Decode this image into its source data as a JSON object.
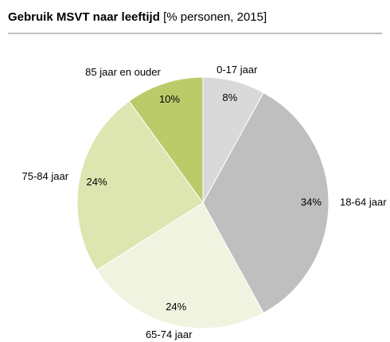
{
  "chart_data": {
    "type": "pie",
    "title": "Gebruik MSVT naar leeftijd",
    "subtitle": "[% personen, 2015]",
    "categories": [
      "0-17 jaar",
      "18-64 jaar",
      "65-74 jaar",
      "75-84 jaar",
      "85 jaar en ouder"
    ],
    "values": [
      8,
      34,
      24,
      24,
      10
    ],
    "value_labels": [
      "8%",
      "34%",
      "24%",
      "24%",
      "10%"
    ],
    "colors": [
      "#d9d9d9",
      "#bfbfbf",
      "#f0f3e0",
      "#dde5b0",
      "#bccb6a"
    ]
  }
}
